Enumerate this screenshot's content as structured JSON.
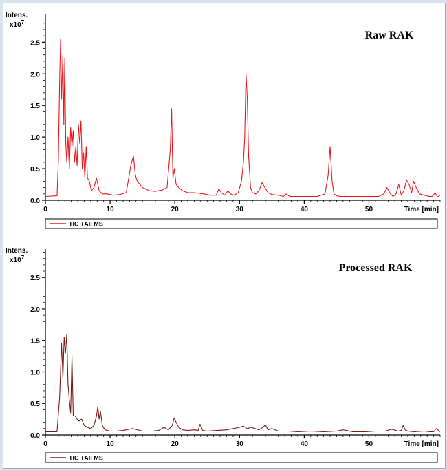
{
  "chart_data": [
    {
      "type": "line",
      "title": "Raw RAK",
      "ylabel_line1": "Intens.",
      "ylabel_line2": "x10",
      "ylabel_exp": "7",
      "xlabel": "Time [min]",
      "xlim": [
        0,
        61
      ],
      "ylim": [
        0,
        2.95
      ],
      "xticks": [
        0,
        10,
        20,
        30,
        40,
        50
      ],
      "yticks": [
        0.0,
        0.5,
        1.0,
        1.5,
        2.0,
        2.5
      ],
      "color": "#e8161b",
      "legend": "TIC +All MS",
      "series": [
        {
          "x": [
            0,
            1.8,
            2.0,
            2.2,
            2.35,
            2.5,
            2.7,
            2.85,
            3.0,
            3.15,
            3.3,
            3.5,
            3.7,
            3.9,
            4.1,
            4.3,
            4.5,
            4.7,
            4.9,
            5.1,
            5.3,
            5.5,
            5.7,
            5.9,
            6.1,
            6.3,
            6.5,
            6.8,
            7.1,
            7.5,
            7.9,
            8.3,
            8.8,
            9.5,
            10.5,
            11.5,
            12.5,
            13.2,
            13.6,
            13.9,
            14.2,
            14.6,
            15.0,
            15.5,
            16.0,
            17.0,
            18.0,
            18.8,
            19.3,
            19.5,
            19.7,
            19.9,
            20.2,
            20.6,
            21.2,
            22.0,
            23.0,
            24.5,
            25.5,
            26.4,
            26.8,
            27.2,
            27.7,
            28.2,
            28.6,
            29.2,
            29.8,
            30.3,
            30.6,
            30.8,
            31.0,
            31.2,
            31.4,
            31.7,
            32.0,
            32.5,
            33.0,
            33.5,
            33.9,
            34.4,
            35.0,
            36.0,
            36.8,
            37.2,
            37.8,
            39.0,
            40.5,
            42.0,
            43.2,
            43.7,
            44.0,
            44.3,
            44.6,
            45.0,
            45.6,
            46.5,
            48.0,
            50.0,
            51.5,
            52.3,
            52.8,
            53.2,
            53.7,
            54.2,
            54.6,
            55.0,
            55.4,
            55.8,
            56.2,
            56.6,
            56.9,
            57.3,
            57.8,
            58.5,
            59.3,
            59.8,
            60.2,
            60.6,
            61.0
          ],
          "y": [
            0.06,
            0.07,
            0.6,
            1.9,
            2.55,
            1.6,
            2.3,
            1.2,
            2.25,
            0.9,
            0.6,
            1.0,
            0.5,
            1.15,
            0.85,
            1.1,
            0.6,
            0.85,
            0.55,
            1.2,
            0.9,
            1.25,
            0.5,
            0.75,
            0.35,
            0.85,
            0.35,
            0.3,
            0.15,
            0.2,
            0.35,
            0.15,
            0.1,
            0.1,
            0.08,
            0.09,
            0.12,
            0.55,
            0.7,
            0.4,
            0.3,
            0.25,
            0.2,
            0.18,
            0.15,
            0.14,
            0.16,
            0.2,
            0.8,
            1.45,
            0.35,
            0.5,
            0.25,
            0.2,
            0.15,
            0.12,
            0.12,
            0.1,
            0.08,
            0.08,
            0.18,
            0.12,
            0.08,
            0.15,
            0.1,
            0.08,
            0.12,
            0.3,
            0.6,
            1.0,
            2.0,
            1.6,
            0.7,
            0.2,
            0.12,
            0.1,
            0.15,
            0.28,
            0.2,
            0.12,
            0.09,
            0.08,
            0.06,
            0.1,
            0.06,
            0.06,
            0.06,
            0.06,
            0.1,
            0.4,
            0.85,
            0.3,
            0.1,
            0.07,
            0.06,
            0.06,
            0.06,
            0.06,
            0.06,
            0.1,
            0.2,
            0.12,
            0.06,
            0.1,
            0.25,
            0.08,
            0.15,
            0.32,
            0.25,
            0.12,
            0.3,
            0.2,
            0.1,
            0.08,
            0.06,
            0.06,
            0.12,
            0.05,
            0.08
          ]
        }
      ]
    },
    {
      "type": "line",
      "title": "Processed RAK",
      "ylabel_line1": "Intens.",
      "ylabel_line2": "x10",
      "ylabel_exp": "7",
      "xlabel": "Time [min]",
      "xlim": [
        0,
        61
      ],
      "ylim": [
        0,
        2.95
      ],
      "xticks": [
        0,
        10,
        20,
        30,
        40,
        50
      ],
      "yticks": [
        0.0,
        0.5,
        1.0,
        1.5,
        2.0,
        2.5
      ],
      "color": "#7b1a14",
      "legend": "TIC +All MS",
      "series": [
        {
          "x": [
            0,
            1.8,
            2.2,
            2.5,
            2.7,
            2.9,
            3.1,
            3.3,
            3.5,
            3.7,
            3.9,
            4.1,
            4.3,
            4.6,
            4.9,
            5.2,
            5.6,
            6.0,
            6.5,
            7.0,
            7.5,
            7.9,
            8.1,
            8.3,
            8.5,
            8.8,
            9.2,
            10.0,
            11.0,
            12.0,
            13.5,
            15.0,
            16.5,
            17.5,
            18.3,
            19.0,
            19.6,
            19.9,
            20.2,
            20.6,
            21.2,
            22.0,
            23.0,
            23.6,
            23.9,
            24.3,
            25.0,
            26.5,
            28.0,
            29.0,
            30.0,
            30.6,
            31.2,
            31.8,
            32.4,
            33.0,
            33.6,
            34.0,
            34.4,
            35.0,
            36.0,
            37.5,
            39.0,
            41.0,
            43.0,
            45.0,
            46.0,
            47.5,
            49.5,
            51.0,
            52.5,
            53.5,
            54.5,
            55.0,
            55.3,
            55.6,
            56.0,
            57.0,
            58.5,
            59.5,
            60.0,
            60.4,
            61.0
          ],
          "y": [
            0.05,
            0.05,
            0.6,
            1.45,
            0.9,
            1.55,
            1.3,
            1.6,
            0.8,
            0.55,
            0.35,
            1.25,
            0.3,
            0.3,
            0.25,
            0.22,
            0.25,
            0.15,
            0.12,
            0.1,
            0.15,
            0.3,
            0.45,
            0.25,
            0.38,
            0.15,
            0.08,
            0.06,
            0.06,
            0.07,
            0.1,
            0.06,
            0.06,
            0.07,
            0.12,
            0.08,
            0.15,
            0.27,
            0.2,
            0.12,
            0.08,
            0.07,
            0.08,
            0.07,
            0.17,
            0.07,
            0.06,
            0.07,
            0.08,
            0.1,
            0.12,
            0.14,
            0.1,
            0.12,
            0.1,
            0.08,
            0.12,
            0.16,
            0.08,
            0.1,
            0.06,
            0.06,
            0.05,
            0.06,
            0.05,
            0.06,
            0.08,
            0.05,
            0.05,
            0.06,
            0.06,
            0.09,
            0.06,
            0.07,
            0.15,
            0.08,
            0.06,
            0.05,
            0.06,
            0.05,
            0.05,
            0.1,
            0.05
          ]
        }
      ]
    }
  ]
}
